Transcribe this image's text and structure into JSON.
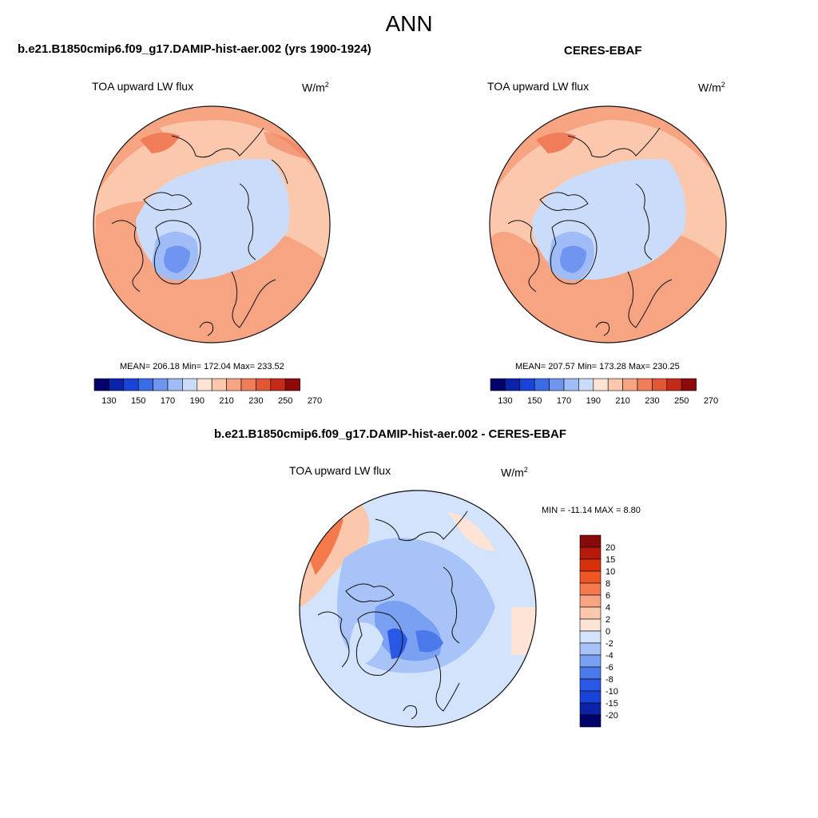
{
  "main_title": "ANN",
  "colors": {
    "abs_scale": [
      "#020269",
      "#0a23a8",
      "#1a44d8",
      "#3a6ce8",
      "#6f95f0",
      "#9fbcf6",
      "#cbdcfa",
      "#fde4d6",
      "#fbc7ad",
      "#f7a482",
      "#f07d5a",
      "#e25535",
      "#c32a18",
      "#8e0a0a"
    ],
    "diff_scale": [
      "#020269",
      "#0a23a8",
      "#1a44d8",
      "#2a58e6",
      "#4a7aea",
      "#7aa0f2",
      "#a7c3f7",
      "#d3e3fb",
      "#fde4d6",
      "#fbc7ad",
      "#f7a482",
      "#f47a4e",
      "#ee5626",
      "#d8300a",
      "#b51a0a",
      "#880a0a"
    ],
    "land_outline": "#111111"
  },
  "panels": {
    "model": {
      "title": "b.e21.B1850cmip6.f09_g17.DAMIP-hist-aer.002 (yrs 1900-1924)",
      "variable": "TOA upward LW flux",
      "units_base": "W/m",
      "units_exp": "2",
      "stats": "MEAN= 206.18  Min= 172.04  Max= 233.52",
      "mean": 206.18,
      "min": 172.04,
      "max": 233.52
    },
    "obs": {
      "title": "CERES-EBAF",
      "variable": "TOA upward LW flux",
      "units_base": "W/m",
      "units_exp": "2",
      "stats": "MEAN= 207.57  Min= 173.28  Max= 230.25",
      "mean": 207.57,
      "min": 173.28,
      "max": 230.25
    },
    "diff": {
      "title": "b.e21.B1850cmip6.f09_g17.DAMIP-hist-aer.002 - CERES-EBAF",
      "variable": "TOA upward LW flux",
      "units_base": "W/m",
      "units_exp": "2",
      "stats": "MIN = -11.14 MAX =   8.80",
      "min": -11.14,
      "max": 8.8
    }
  },
  "abs_colorbar": {
    "tick_labels": [
      "130",
      "150",
      "170",
      "190",
      "210",
      "230",
      "250",
      "270"
    ]
  },
  "diff_colorbar": {
    "tick_labels": [
      "20",
      "15",
      "10",
      "8",
      "6",
      "4",
      "2",
      "0",
      "-2",
      "-4",
      "-6",
      "-8",
      "-10",
      "-15",
      "-20"
    ]
  }
}
